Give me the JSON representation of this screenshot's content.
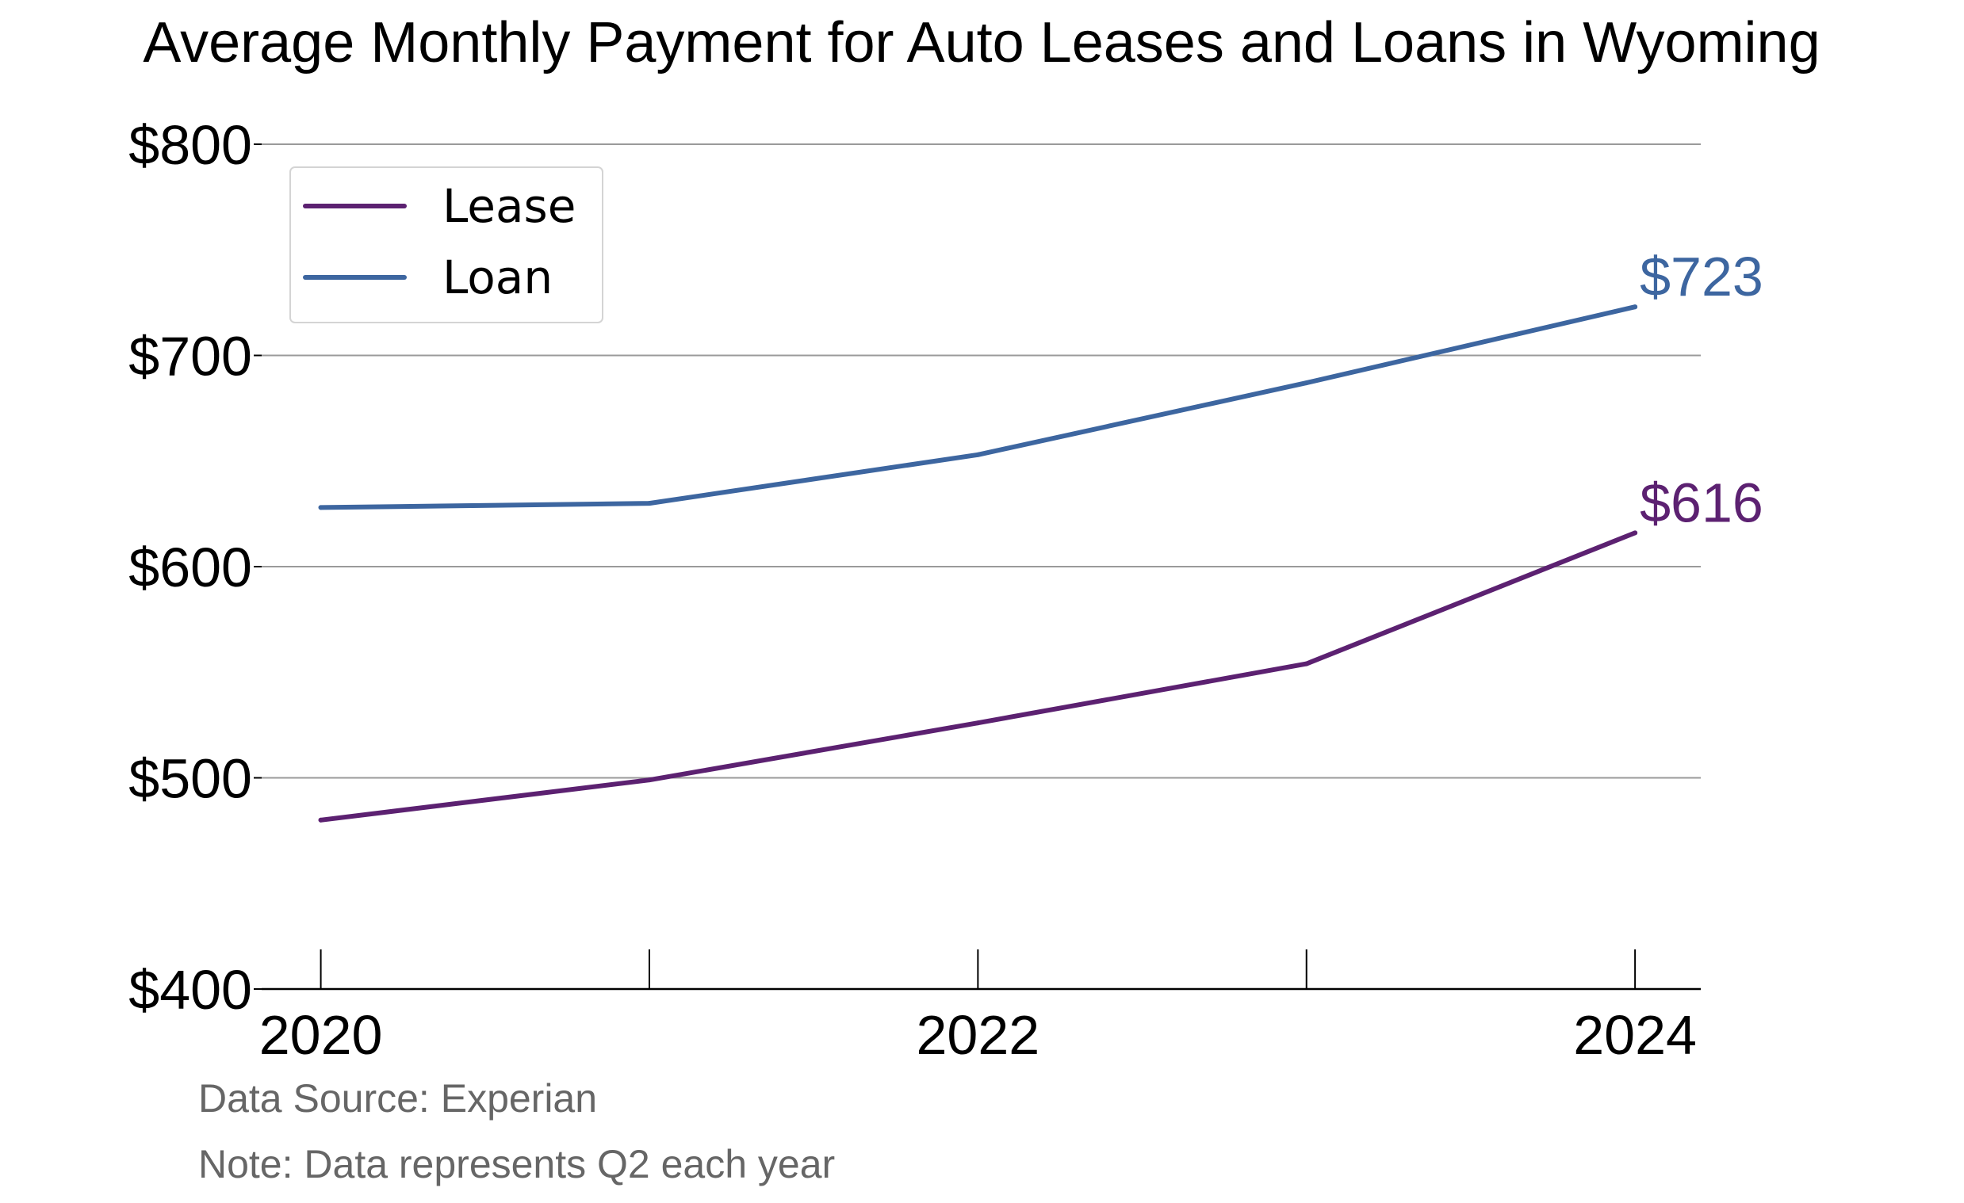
{
  "chart_data": {
    "type": "line",
    "title": "Average Monthly Payment for Auto Leases and Loans in Wyoming",
    "x": [
      2020,
      2021,
      2022,
      2023,
      2024
    ],
    "x_tick_labels": [
      {
        "value": 2020,
        "label": "2020"
      },
      {
        "value": 2022,
        "label": "2022"
      },
      {
        "value": 2024,
        "label": "2024"
      }
    ],
    "x_ticks": [
      2020,
      2021,
      2022,
      2023,
      2024
    ],
    "xlim": [
      2019.82,
      2024.2
    ],
    "ylim": [
      400,
      800
    ],
    "y_ticks": [
      {
        "value": 400,
        "label": "$400"
      },
      {
        "value": 500,
        "label": "$500"
      },
      {
        "value": 600,
        "label": "$600"
      },
      {
        "value": 700,
        "label": "$700"
      },
      {
        "value": 800,
        "label": "$800"
      }
    ],
    "grid": "horizontal",
    "legend_position": "top-left",
    "series": [
      {
        "name": "Lease",
        "color": "#5c2171",
        "values": [
          480,
          499,
          526,
          554,
          616
        ],
        "end_label": "$616"
      },
      {
        "name": "Loan",
        "color": "#3d66a0",
        "values": [
          628,
          630,
          653,
          687,
          723
        ],
        "end_label": "$723"
      }
    ],
    "source": "Data Source: Experian",
    "note": "Note: Data represents Q2 each year"
  }
}
